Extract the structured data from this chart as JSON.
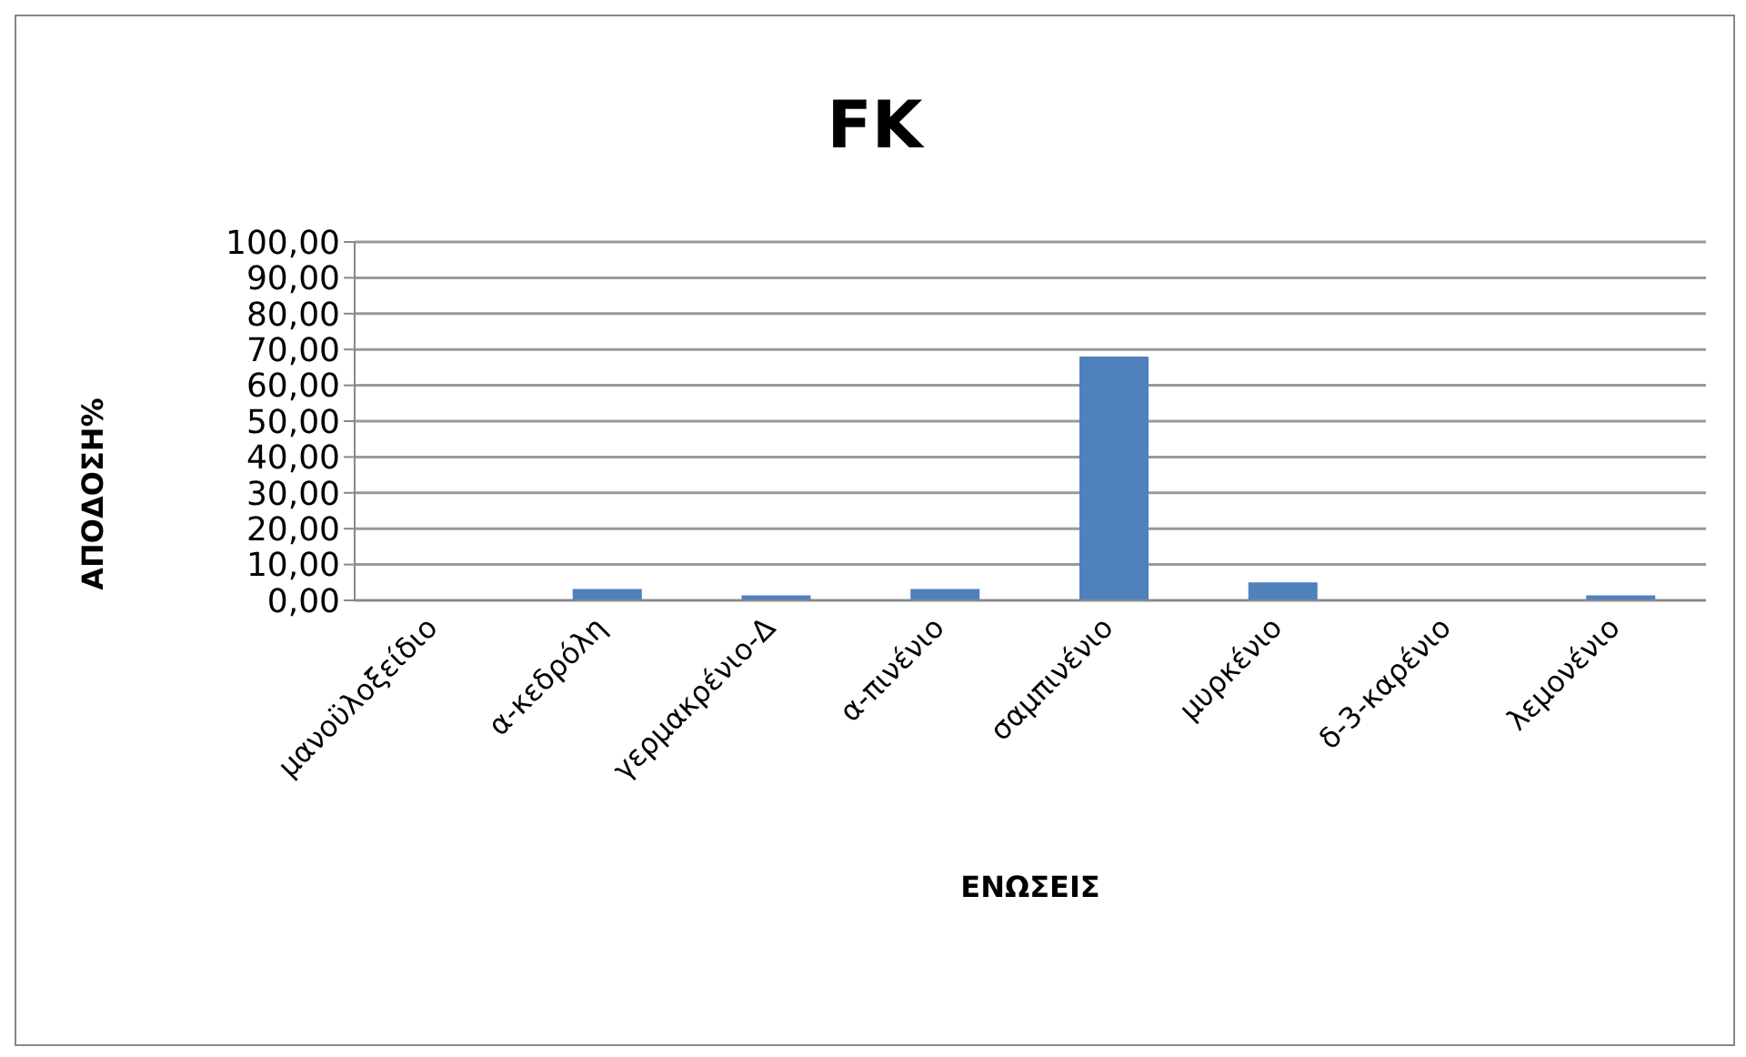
{
  "chart_data": {
    "type": "bar",
    "title": "FK",
    "xlabel": "ΕΝΩΣΕΙΣ",
    "ylabel": "ΑΠΟΔΟΣΗ%",
    "categories": [
      "μανοϋλοξείδιο",
      "α-κεδρόλη",
      "γερμακρένιο-Δ",
      "α-πινένιο",
      "σαμπινένιο",
      "μυρκένιο",
      "δ-3-καρένιο",
      "λεμονένιο"
    ],
    "values": [
      0,
      3.2,
      1.4,
      3.2,
      68,
      5,
      0,
      1.4
    ],
    "color": "#4f81bd",
    "ylim": [
      0,
      100
    ],
    "yticks": [
      {
        "value": 0,
        "label": "0,00"
      },
      {
        "value": 10,
        "label": "10,00"
      },
      {
        "value": 20,
        "label": "20,00"
      },
      {
        "value": 30,
        "label": "30,00"
      },
      {
        "value": 40,
        "label": "40,00"
      },
      {
        "value": 50,
        "label": "50,00"
      },
      {
        "value": 60,
        "label": "60,00"
      },
      {
        "value": 70,
        "label": "70,00"
      },
      {
        "value": 80,
        "label": "80,00"
      },
      {
        "value": 90,
        "label": "90,00"
      },
      {
        "value": 100,
        "label": "100,00"
      }
    ],
    "grid": "y",
    "legend": false
  }
}
